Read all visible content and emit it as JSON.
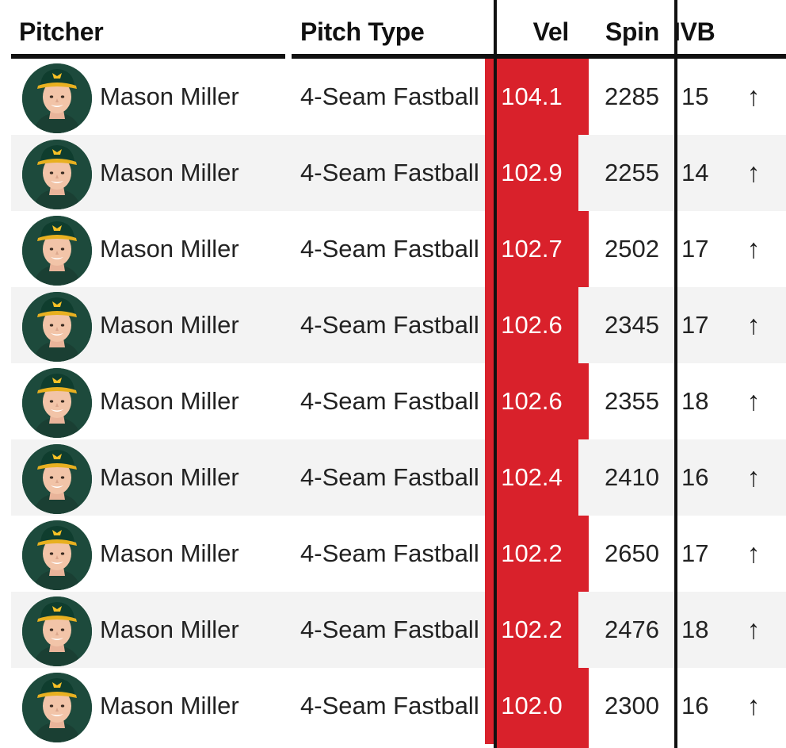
{
  "colors": {
    "accent_red": "#d9212b",
    "header_line": "#111111",
    "row_alt": "#f3f3f3",
    "avatar_bg": "#1d4a3c"
  },
  "header": {
    "pitcher": "Pitcher",
    "pitch_type": "Pitch Type",
    "vel": "Vel",
    "spin": "Spin",
    "ivb": "IVB"
  },
  "rows": [
    {
      "pitcher": "Mason Miller",
      "pitch_type": "4-Seam Fastball",
      "vel": "104.1",
      "spin": "2285",
      "ivb": "15",
      "arrow": "↑"
    },
    {
      "pitcher": "Mason Miller",
      "pitch_type": "4-Seam Fastball",
      "vel": "102.9",
      "spin": "2255",
      "ivb": "14",
      "arrow": "↑"
    },
    {
      "pitcher": "Mason Miller",
      "pitch_type": "4-Seam Fastball",
      "vel": "102.7",
      "spin": "2502",
      "ivb": "17",
      "arrow": "↑"
    },
    {
      "pitcher": "Mason Miller",
      "pitch_type": "4-Seam Fastball",
      "vel": "102.6",
      "spin": "2345",
      "ivb": "17",
      "arrow": "↑"
    },
    {
      "pitcher": "Mason Miller",
      "pitch_type": "4-Seam Fastball",
      "vel": "102.6",
      "spin": "2355",
      "ivb": "18",
      "arrow": "↑"
    },
    {
      "pitcher": "Mason Miller",
      "pitch_type": "4-Seam Fastball",
      "vel": "102.4",
      "spin": "2410",
      "ivb": "16",
      "arrow": "↑"
    },
    {
      "pitcher": "Mason Miller",
      "pitch_type": "4-Seam Fastball",
      "vel": "102.2",
      "spin": "2650",
      "ivb": "17",
      "arrow": "↑"
    },
    {
      "pitcher": "Mason Miller",
      "pitch_type": "4-Seam Fastball",
      "vel": "102.2",
      "spin": "2476",
      "ivb": "18",
      "arrow": "↑"
    },
    {
      "pitcher": "Mason Miller",
      "pitch_type": "4-Seam Fastball",
      "vel": "102.0",
      "spin": "2300",
      "ivb": "16",
      "arrow": "↑"
    }
  ],
  "icons": {
    "avatar": "player-headshot-icon",
    "arrow": "arrow-up-icon"
  }
}
